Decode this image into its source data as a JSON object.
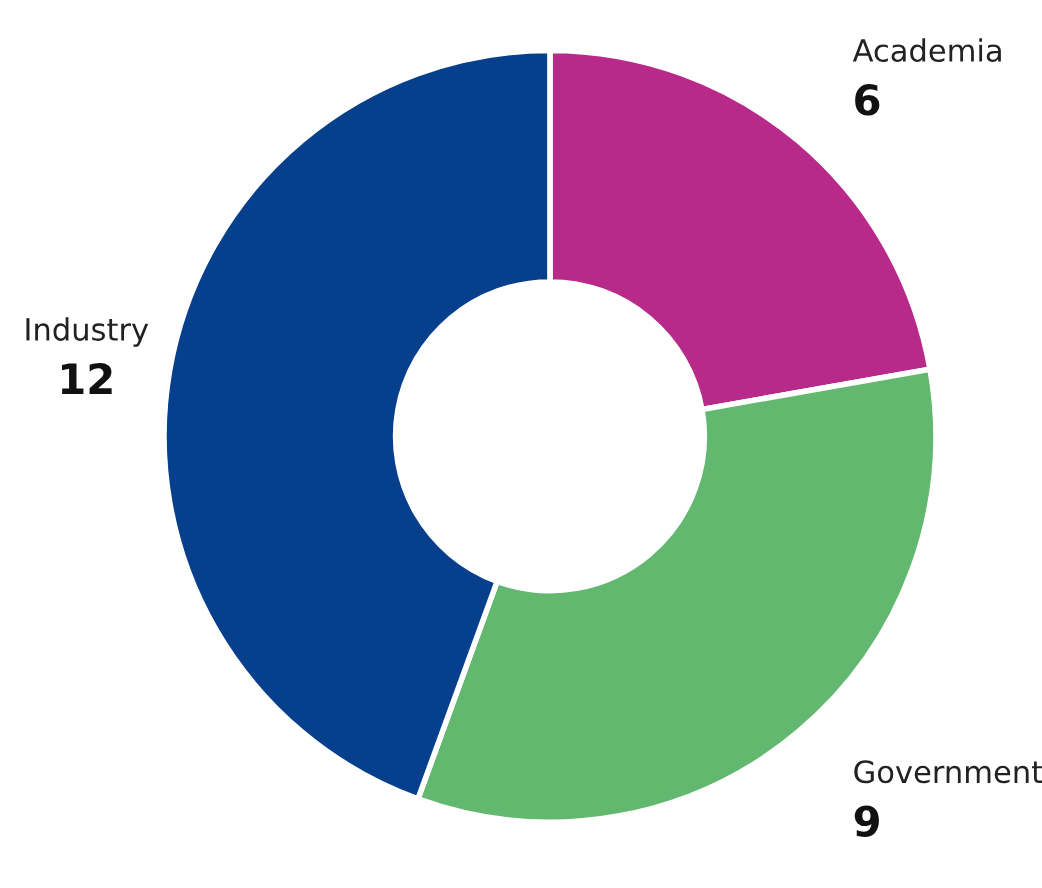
{
  "chart_data": {
    "type": "donut",
    "categories": [
      "Academia",
      "Government",
      "Industry"
    ],
    "values": [
      6,
      9,
      12
    ],
    "colors": [
      "#b82a8a",
      "#63b870",
      "#063f8c"
    ],
    "data_labels": true,
    "legend": false
  }
}
